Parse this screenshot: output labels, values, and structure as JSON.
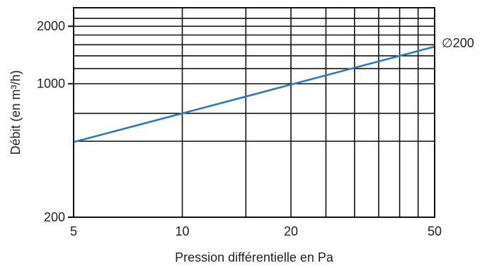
{
  "chart_data": {
    "type": "line",
    "xscale": "log",
    "yscale": "log",
    "xlim": [
      5,
      50
    ],
    "ylim": [
      200,
      2500
    ],
    "xlabel": "Pression différentielle en Pa",
    "ylabel": "Débit (en m³/h)",
    "x_tick_labels": [
      {
        "value": 5,
        "label": "5"
      },
      {
        "value": 10,
        "label": "10"
      },
      {
        "value": 20,
        "label": "20"
      },
      {
        "value": 50,
        "label": "50"
      }
    ],
    "y_tick_labels": [
      {
        "value": 200,
        "label": "200"
      },
      {
        "value": 1000,
        "label": "1000"
      },
      {
        "value": 2000,
        "label": "2000"
      }
    ],
    "x_grid": [
      10,
      15,
      20,
      25,
      30,
      35,
      40,
      45
    ],
    "y_grid": [
      500,
      700,
      1000,
      1200,
      1400,
      1600,
      1800,
      2000,
      2200
    ],
    "series": [
      {
        "name": "∅200",
        "color": "#2e78bf",
        "x": [
          5,
          10,
          20,
          50
        ],
        "y": [
          495,
          700,
          990,
          1565
        ]
      }
    ]
  }
}
